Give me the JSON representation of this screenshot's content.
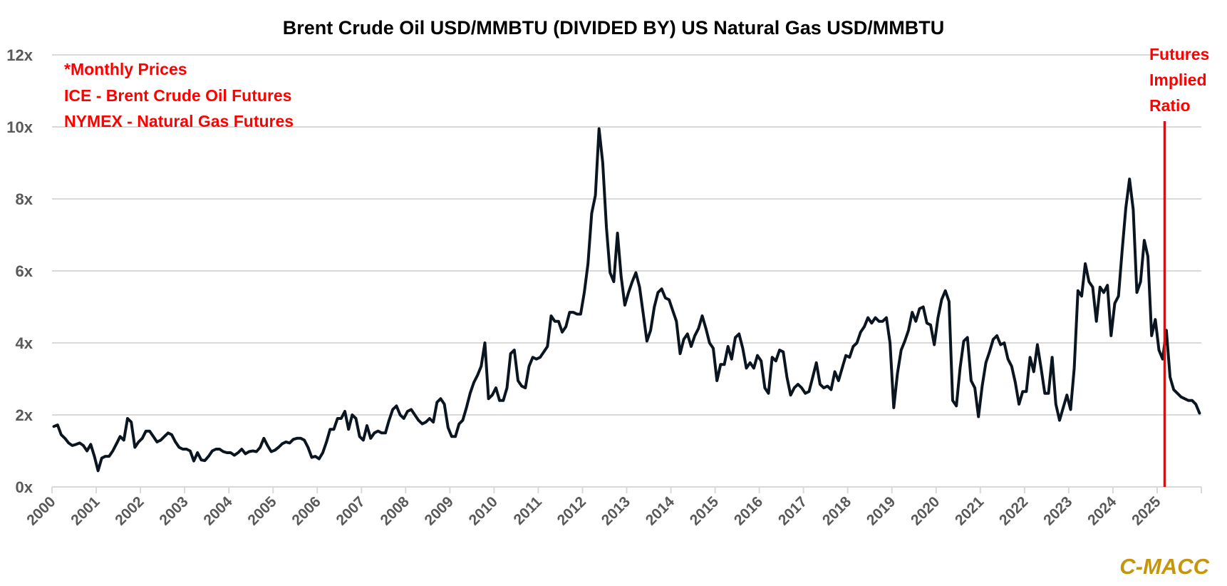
{
  "chart_data": {
    "type": "line",
    "title": "Brent Crude Oil USD/MMBTU (DIVIDED BY) US Natural Gas USD/MMBTU",
    "xlabel": "",
    "ylabel": "",
    "ylim": [
      0,
      12
    ],
    "yticks": [
      0,
      2,
      4,
      6,
      8,
      10,
      12
    ],
    "ytick_labels": [
      "0x",
      "2x",
      "4x",
      "6x",
      "8x",
      "10x",
      "12x"
    ],
    "xlim": [
      2000,
      2026
    ],
    "xtick_labels": [
      "2000",
      "2001",
      "2002",
      "2003",
      "2004",
      "2005",
      "2006",
      "2007",
      "2008",
      "2009",
      "2010",
      "2011",
      "2012",
      "2013",
      "2014",
      "2015",
      "2016",
      "2017",
      "2018",
      "2019",
      "2020",
      "2021",
      "2022",
      "2023",
      "2024",
      "2025"
    ],
    "grid": true,
    "frequency": "monthly",
    "start": "2000-01",
    "series": [
      {
        "name": "Brent / US Natural Gas ratio",
        "color": "#0b1520",
        "values": [
          1.68,
          1.72,
          1.45,
          1.35,
          1.22,
          1.15,
          1.18,
          1.22,
          1.15,
          1.0,
          1.18,
          0.85,
          0.45,
          0.8,
          0.85,
          0.85,
          1.0,
          1.2,
          1.4,
          1.3,
          1.9,
          1.8,
          1.1,
          1.25,
          1.35,
          1.55,
          1.55,
          1.4,
          1.25,
          1.3,
          1.4,
          1.5,
          1.45,
          1.25,
          1.1,
          1.05,
          1.05,
          1.0,
          0.72,
          0.95,
          0.75,
          0.73,
          0.85,
          1.0,
          1.05,
          1.05,
          0.98,
          0.95,
          0.95,
          0.88,
          0.95,
          1.05,
          0.92,
          0.98,
          1.0,
          0.98,
          1.1,
          1.35,
          1.15,
          0.98,
          1.02,
          1.1,
          1.2,
          1.25,
          1.22,
          1.32,
          1.35,
          1.35,
          1.3,
          1.1,
          0.82,
          0.85,
          0.78,
          0.95,
          1.25,
          1.6,
          1.6,
          1.9,
          1.9,
          2.1,
          1.6,
          2.0,
          1.9,
          1.4,
          1.3,
          1.7,
          1.35,
          1.5,
          1.55,
          1.5,
          1.5,
          1.85,
          2.15,
          2.25,
          2.0,
          1.9,
          2.1,
          2.15,
          2.0,
          1.85,
          1.75,
          1.8,
          1.9,
          1.8,
          2.35,
          2.45,
          2.3,
          1.65,
          1.4,
          1.4,
          1.75,
          1.85,
          2.2,
          2.6,
          2.9,
          3.1,
          3.35,
          4.0,
          2.45,
          2.55,
          2.75,
          2.4,
          2.4,
          2.75,
          3.7,
          3.8,
          2.95,
          2.8,
          2.75,
          3.35,
          3.6,
          3.55,
          3.6,
          3.75,
          3.9,
          4.75,
          4.6,
          4.6,
          4.3,
          4.45,
          4.85,
          4.85,
          4.8,
          4.8,
          5.4,
          6.2,
          7.6,
          8.1,
          9.95,
          9.0,
          7.2,
          5.95,
          5.7,
          7.05,
          5.85,
          5.05,
          5.4,
          5.7,
          5.95,
          5.55,
          4.8,
          4.05,
          4.35,
          5.0,
          5.4,
          5.5,
          5.25,
          5.2,
          4.9,
          4.6,
          3.7,
          4.1,
          4.25,
          3.9,
          4.2,
          4.4,
          4.75,
          4.4,
          4.0,
          3.85,
          2.95,
          3.4,
          3.4,
          3.9,
          3.55,
          4.15,
          4.25,
          3.85,
          3.3,
          3.45,
          3.3,
          3.65,
          3.5,
          2.75,
          2.6,
          3.6,
          3.5,
          3.8,
          3.75,
          3.05,
          2.55,
          2.75,
          2.85,
          2.75,
          2.6,
          2.65,
          3.05,
          3.45,
          2.85,
          2.75,
          2.8,
          2.7,
          3.2,
          2.95,
          3.3,
          3.65,
          3.6,
          3.9,
          4.0,
          4.3,
          4.45,
          4.7,
          4.55,
          4.7,
          4.6,
          4.6,
          4.7,
          4.0,
          2.2,
          3.15,
          3.8,
          4.05,
          4.35,
          4.85,
          4.6,
          4.95,
          5.0,
          4.55,
          4.5,
          3.95,
          4.7,
          5.2,
          5.45,
          5.15,
          2.4,
          2.25,
          3.3,
          4.05,
          4.15,
          2.95,
          2.75,
          1.95,
          2.8,
          3.45,
          3.75,
          4.1,
          4.2,
          3.95,
          4.0,
          3.55,
          3.35,
          2.9,
          2.3,
          2.65,
          2.65,
          3.6,
          3.2,
          3.95,
          3.3,
          2.6,
          2.6,
          3.6,
          2.3,
          1.85,
          2.2,
          2.55,
          2.15,
          3.3,
          5.45,
          5.3,
          6.2,
          5.7,
          5.55,
          4.6,
          5.55,
          5.4,
          5.6,
          4.2,
          5.1,
          5.3,
          6.55,
          7.75,
          8.55,
          7.7,
          5.4,
          5.7,
          6.85,
          6.4,
          4.2,
          4.65,
          3.8,
          3.55,
          4.35,
          3.05,
          2.7,
          2.6,
          2.5,
          2.45,
          2.4,
          2.4,
          2.3,
          2.05
        ]
      }
    ],
    "annotations": {
      "notes": [
        "*Monthly Prices",
        "ICE - Brent Crude Oil Futures",
        "NYMEX - Natural Gas Futures"
      ],
      "notes_color": "#ff0000",
      "futures_marker": {
        "label_lines": [
          "Futures",
          "Implied",
          "Ratio"
        ],
        "x": 2025.17,
        "color": "#ff0000"
      }
    },
    "legend": "none"
  },
  "branding": {
    "watermark": "C-MACC",
    "color": "#c5960b"
  }
}
